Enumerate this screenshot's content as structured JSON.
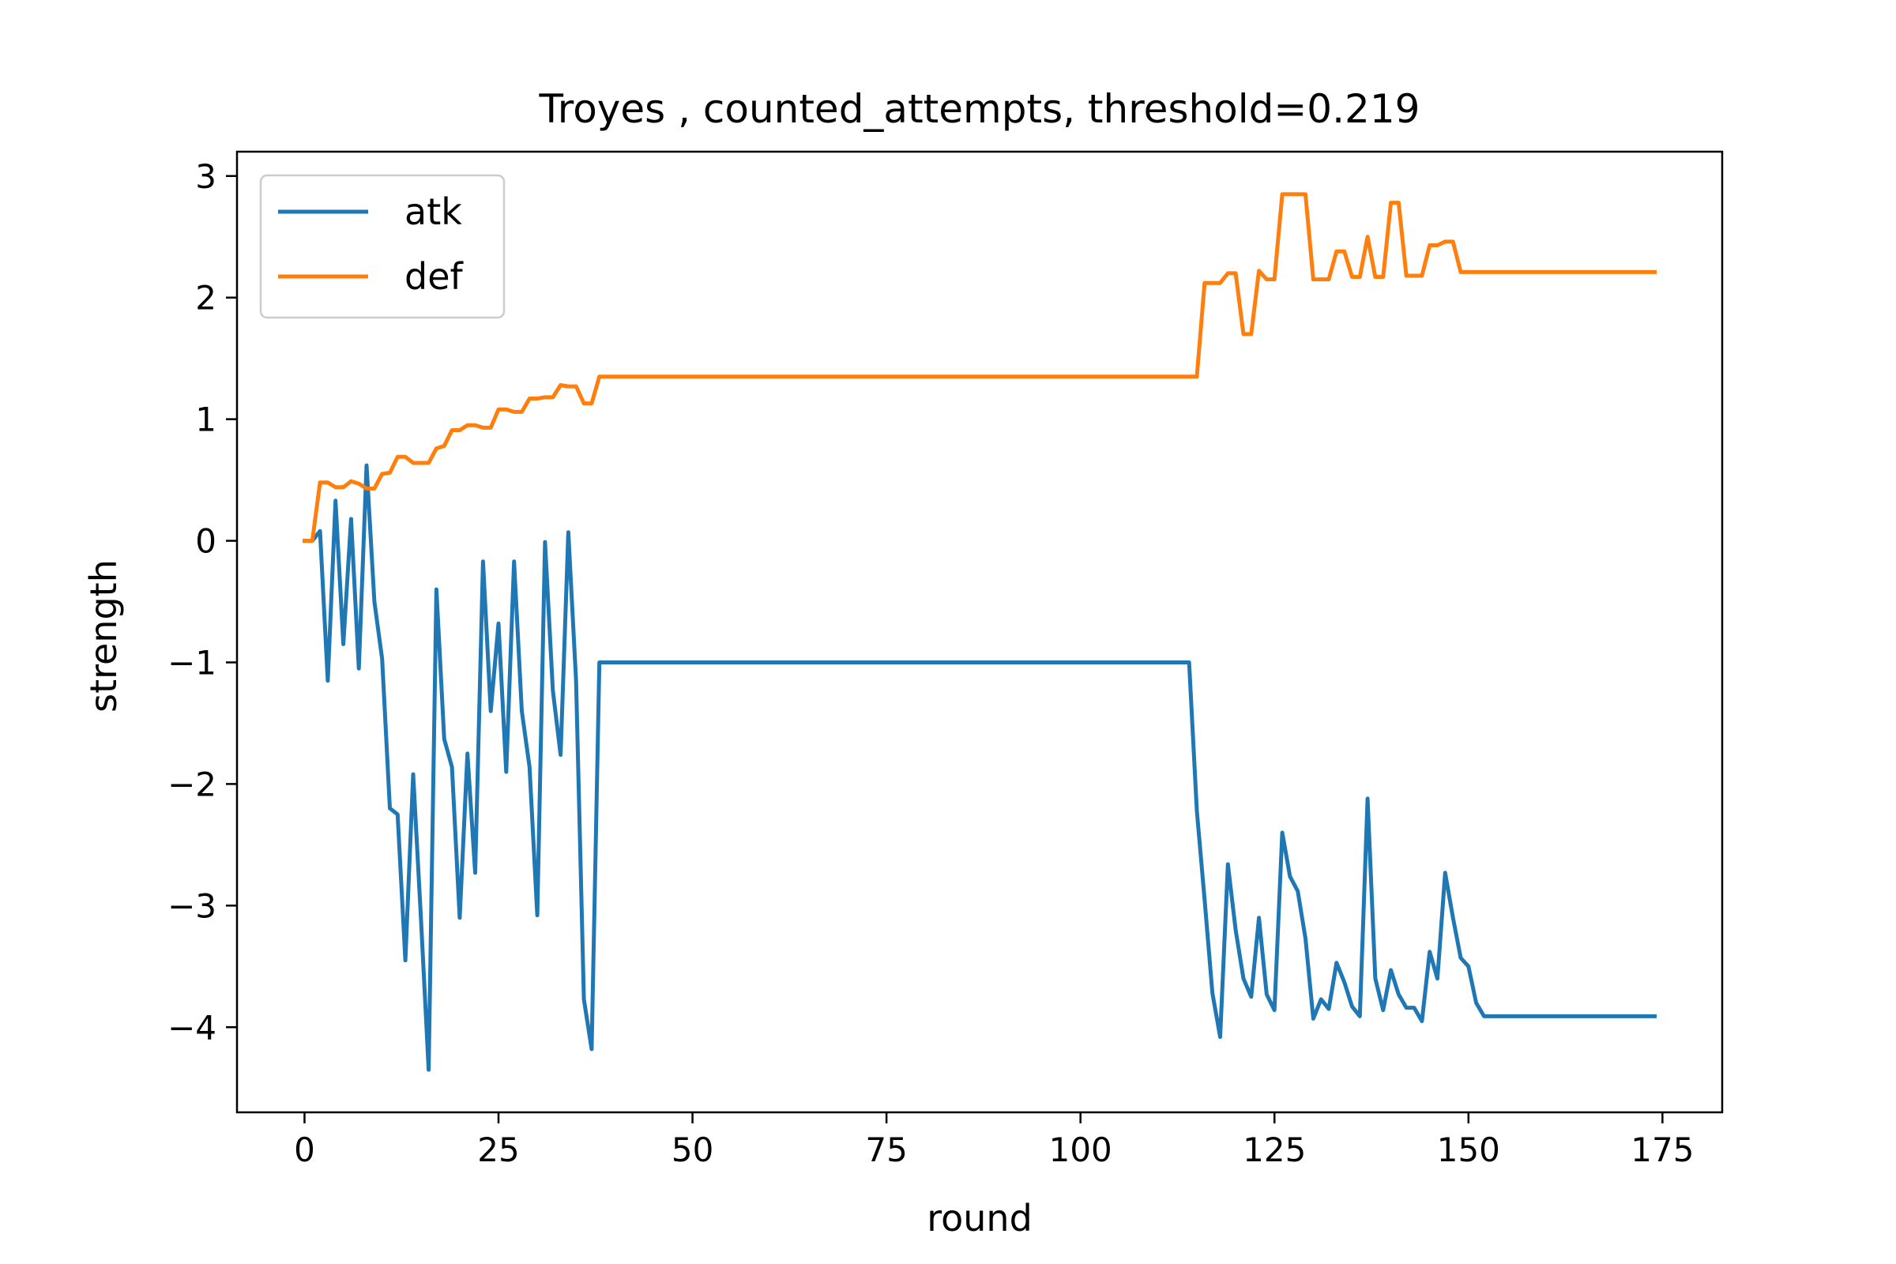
{
  "chart_data": {
    "type": "line",
    "title": "Troyes , counted_attempts, threshold=0.219",
    "xlabel": "round",
    "ylabel": "strength",
    "xlim": [
      -8.7,
      182.7
    ],
    "ylim": [
      -4.7,
      3.2
    ],
    "xticks": [
      0,
      25,
      50,
      75,
      100,
      125,
      150,
      175
    ],
    "xtick_labels": [
      "0",
      "25",
      "50",
      "75",
      "100",
      "125",
      "150",
      "175"
    ],
    "yticks": [
      3,
      2,
      1,
      0,
      -1,
      -2,
      -3,
      -4
    ],
    "ytick_labels": [
      "3",
      "2",
      "1",
      "0",
      "−1",
      "−2",
      "−3",
      "−4"
    ],
    "grid": false,
    "legend_position": "top-left",
    "series": [
      {
        "name": "atk",
        "color": "#1f77b4",
        "points": [
          [
            0,
            0
          ],
          [
            1,
            0
          ],
          [
            2,
            0.08
          ],
          [
            3,
            -1.15
          ],
          [
            4,
            0.33
          ],
          [
            5,
            -0.85
          ],
          [
            6,
            0.18
          ],
          [
            7,
            -1.05
          ],
          [
            8,
            0.62
          ],
          [
            9,
            -0.5
          ],
          [
            10,
            -0.97
          ],
          [
            11,
            -2.2
          ],
          [
            12,
            -2.25
          ],
          [
            13,
            -3.45
          ],
          [
            14,
            -1.92
          ],
          [
            15,
            -3.1
          ],
          [
            16,
            -4.35
          ],
          [
            17,
            -0.4
          ],
          [
            18,
            -1.63
          ],
          [
            19,
            -1.86
          ],
          [
            20,
            -3.1
          ],
          [
            21,
            -1.75
          ],
          [
            22,
            -2.73
          ],
          [
            23,
            -0.17
          ],
          [
            24,
            -1.4
          ],
          [
            25,
            -0.68
          ],
          [
            26,
            -1.9
          ],
          [
            27,
            -0.17
          ],
          [
            28,
            -1.4
          ],
          [
            29,
            -1.86
          ],
          [
            30,
            -3.08
          ],
          [
            31,
            -0.01
          ],
          [
            32,
            -1.23
          ],
          [
            33,
            -1.76
          ],
          [
            34,
            0.07
          ],
          [
            35,
            -1.15
          ],
          [
            36,
            -3.77
          ],
          [
            37,
            -4.18
          ],
          [
            38,
            -1.0
          ],
          [
            114,
            -1.0
          ],
          [
            115,
            -2.22
          ],
          [
            116,
            -2.95
          ],
          [
            117,
            -3.72
          ],
          [
            118,
            -4.08
          ],
          [
            119,
            -2.66
          ],
          [
            120,
            -3.2
          ],
          [
            121,
            -3.6
          ],
          [
            122,
            -3.75
          ],
          [
            123,
            -3.1
          ],
          [
            124,
            -3.73
          ],
          [
            125,
            -3.86
          ],
          [
            126,
            -2.4
          ],
          [
            127,
            -2.76
          ],
          [
            128,
            -2.88
          ],
          [
            129,
            -3.27
          ],
          [
            130,
            -3.93
          ],
          [
            131,
            -3.77
          ],
          [
            132,
            -3.85
          ],
          [
            133,
            -3.47
          ],
          [
            134,
            -3.63
          ],
          [
            135,
            -3.83
          ],
          [
            136,
            -3.91
          ],
          [
            137,
            -2.12
          ],
          [
            138,
            -3.6
          ],
          [
            139,
            -3.86
          ],
          [
            140,
            -3.53
          ],
          [
            141,
            -3.73
          ],
          [
            142,
            -3.84
          ],
          [
            143,
            -3.84
          ],
          [
            144,
            -3.95
          ],
          [
            145,
            -3.38
          ],
          [
            146,
            -3.6
          ],
          [
            147,
            -2.73
          ],
          [
            148,
            -3.1
          ],
          [
            149,
            -3.43
          ],
          [
            150,
            -3.5
          ],
          [
            151,
            -3.8
          ],
          [
            152,
            -3.91
          ],
          [
            174,
            -3.91
          ]
        ]
      },
      {
        "name": "def",
        "color": "#ff7f0e",
        "points": [
          [
            0,
            0
          ],
          [
            1,
            0
          ],
          [
            2,
            0.48
          ],
          [
            3,
            0.48
          ],
          [
            4,
            0.44
          ],
          [
            5,
            0.44
          ],
          [
            6,
            0.49
          ],
          [
            7,
            0.47
          ],
          [
            8,
            0.43
          ],
          [
            9,
            0.43
          ],
          [
            10,
            0.55
          ],
          [
            11,
            0.56
          ],
          [
            12,
            0.69
          ],
          [
            13,
            0.69
          ],
          [
            14,
            0.64
          ],
          [
            15,
            0.64
          ],
          [
            16,
            0.64
          ],
          [
            17,
            0.76
          ],
          [
            18,
            0.78
          ],
          [
            19,
            0.91
          ],
          [
            20,
            0.91
          ],
          [
            21,
            0.95
          ],
          [
            22,
            0.95
          ],
          [
            23,
            0.93
          ],
          [
            24,
            0.93
          ],
          [
            25,
            1.08
          ],
          [
            26,
            1.08
          ],
          [
            27,
            1.06
          ],
          [
            28,
            1.06
          ],
          [
            29,
            1.17
          ],
          [
            30,
            1.17
          ],
          [
            31,
            1.18
          ],
          [
            32,
            1.18
          ],
          [
            33,
            1.28
          ],
          [
            34,
            1.27
          ],
          [
            35,
            1.27
          ],
          [
            36,
            1.13
          ],
          [
            37,
            1.13
          ],
          [
            38,
            1.35
          ],
          [
            114,
            1.35
          ],
          [
            115,
            1.35
          ],
          [
            116,
            2.12
          ],
          [
            117,
            2.12
          ],
          [
            118,
            2.12
          ],
          [
            119,
            2.2
          ],
          [
            120,
            2.2
          ],
          [
            121,
            1.7
          ],
          [
            122,
            1.7
          ],
          [
            123,
            2.22
          ],
          [
            124,
            2.15
          ],
          [
            125,
            2.15
          ],
          [
            126,
            2.85
          ],
          [
            127,
            2.85
          ],
          [
            128,
            2.85
          ],
          [
            129,
            2.85
          ],
          [
            130,
            2.15
          ],
          [
            131,
            2.15
          ],
          [
            132,
            2.15
          ],
          [
            133,
            2.38
          ],
          [
            134,
            2.38
          ],
          [
            135,
            2.17
          ],
          [
            136,
            2.17
          ],
          [
            137,
            2.5
          ],
          [
            138,
            2.17
          ],
          [
            139,
            2.17
          ],
          [
            140,
            2.78
          ],
          [
            141,
            2.78
          ],
          [
            142,
            2.18
          ],
          [
            143,
            2.18
          ],
          [
            144,
            2.18
          ],
          [
            145,
            2.43
          ],
          [
            146,
            2.43
          ],
          [
            147,
            2.46
          ],
          [
            148,
            2.46
          ],
          [
            149,
            2.21
          ],
          [
            150,
            2.21
          ],
          [
            174,
            2.21
          ]
        ]
      }
    ]
  }
}
